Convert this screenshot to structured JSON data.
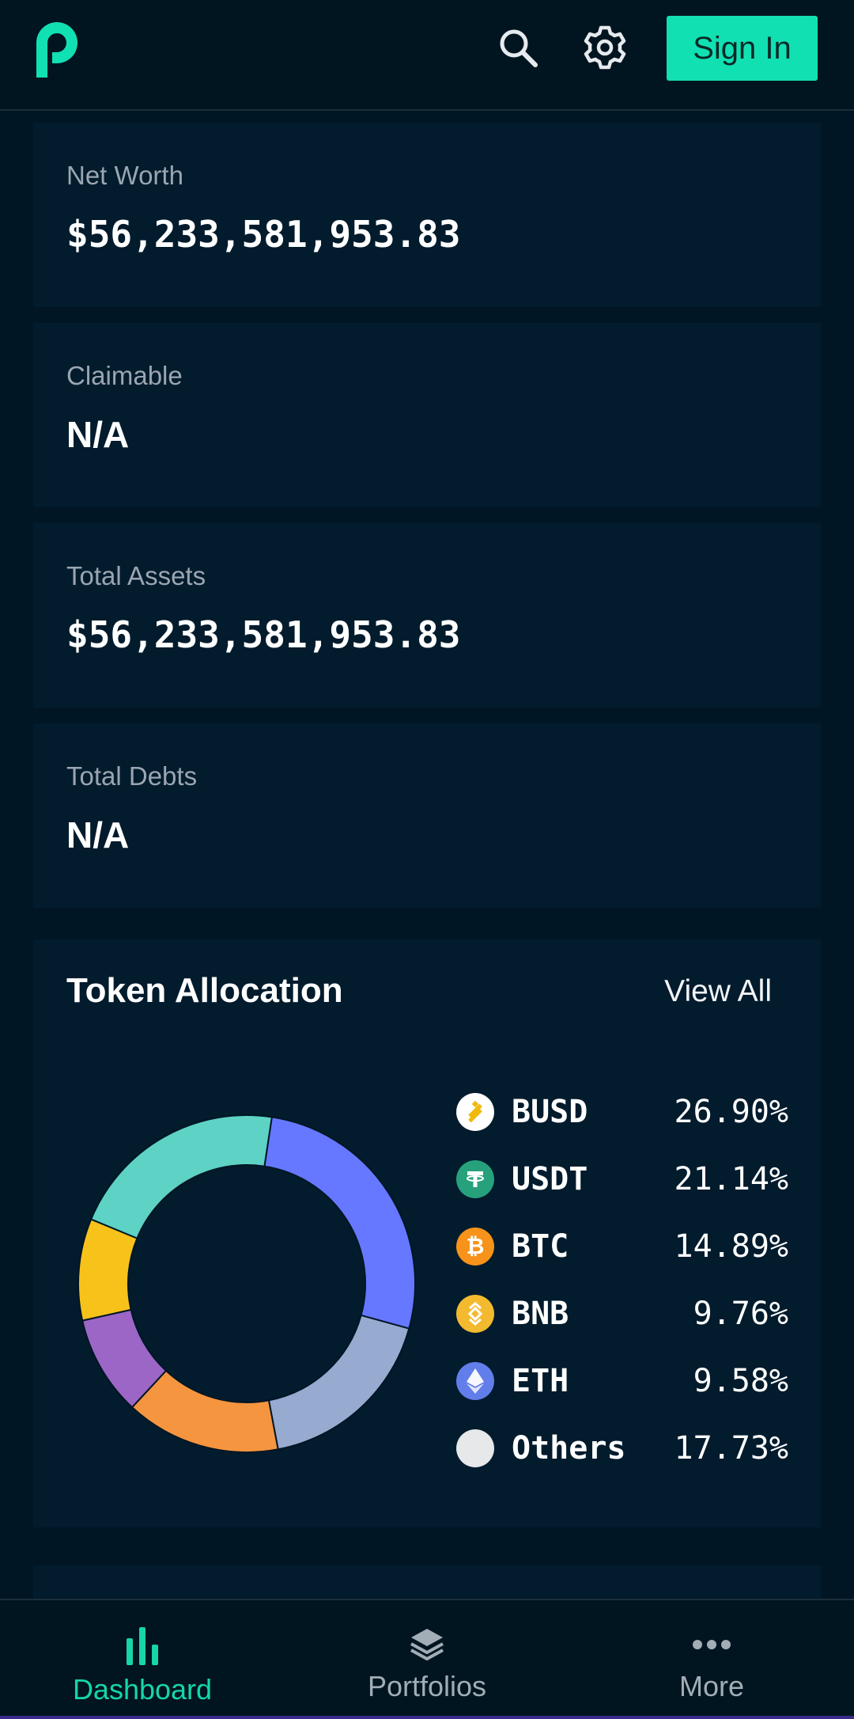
{
  "header": {
    "sign_in_label": "Sign In",
    "accent_color": "#11e0b3"
  },
  "stats": [
    {
      "label": "Net Worth",
      "value": "$56,233,581,953.83"
    },
    {
      "label": "Claimable",
      "value": "N/A"
    },
    {
      "label": "Total Assets",
      "value": "$56,233,581,953.83"
    },
    {
      "label": "Total Debts",
      "value": "N/A"
    }
  ],
  "allocation": {
    "title": "Token Allocation",
    "view_all_label": "View All",
    "tokens": [
      {
        "symbol": "BUSD",
        "percent": "26.90%",
        "icon": "busd-icon",
        "icon_color": "#f0b90b"
      },
      {
        "symbol": "USDT",
        "percent": "21.14%",
        "icon": "usdt-icon",
        "icon_color": "#26a17b"
      },
      {
        "symbol": "BTC",
        "percent": "14.89%",
        "icon": "btc-icon",
        "icon_color": "#f7931a"
      },
      {
        "symbol": "BNB",
        "percent": "9.76%",
        "icon": "bnb-icon",
        "icon_color": "#f3ba2f"
      },
      {
        "symbol": "ETH",
        "percent": "9.58%",
        "icon": "eth-icon",
        "icon_color": "#627eea"
      },
      {
        "symbol": "Others",
        "percent": "17.73%",
        "icon": "others-icon",
        "icon_color": "#e6e8ea"
      }
    ]
  },
  "chart_data": {
    "type": "pie",
    "categories": [
      "BUSD",
      "USDT",
      "BTC",
      "BNB",
      "ETH",
      "Others"
    ],
    "values": [
      26.9,
      21.14,
      14.89,
      9.76,
      9.58,
      17.73
    ],
    "colors": [
      "#6578ff",
      "#97aad0",
      "#f59540",
      "#9b66c6",
      "#f7c21a",
      "#5dd2c5"
    ],
    "display_order": [
      "BUSD",
      "Others-light-blue",
      "BNB",
      "ETH",
      "BTC",
      "USDT"
    ]
  },
  "nav": {
    "items": [
      {
        "label": "Dashboard",
        "icon": "bar-chart-icon",
        "active": true
      },
      {
        "label": "Portfolios",
        "icon": "layers-icon",
        "active": false
      },
      {
        "label": "More",
        "icon": "more-dots-icon",
        "active": false
      }
    ]
  }
}
